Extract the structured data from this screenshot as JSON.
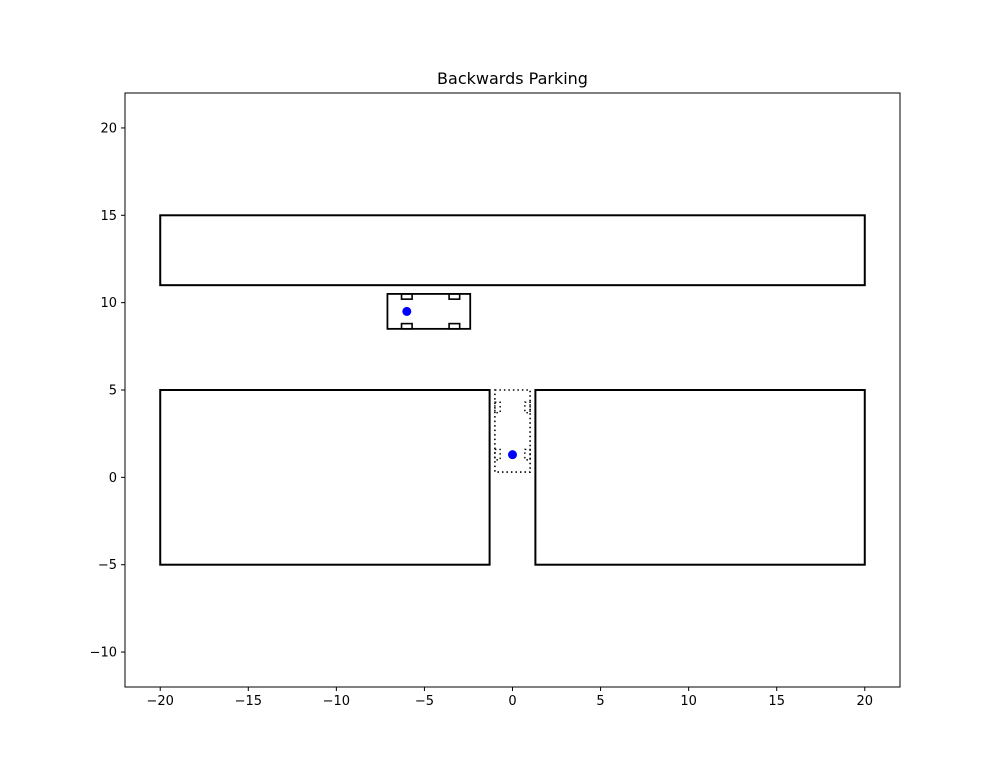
{
  "chart_data": {
    "type": "scatter",
    "title": "Backwards Parking",
    "xlabel": "",
    "ylabel": "",
    "xlim": [
      -22,
      22
    ],
    "ylim": [
      -12,
      22
    ],
    "xticks": [
      -20,
      -15,
      -10,
      -5,
      0,
      5,
      10,
      15,
      20
    ],
    "yticks": [
      -10,
      -5,
      0,
      5,
      10,
      15,
      20
    ],
    "xtick_labels": [
      "−20",
      "−15",
      "−10",
      "−5",
      "0",
      "5",
      "10",
      "15",
      "20"
    ],
    "ytick_labels": [
      "−10",
      "−5",
      "0",
      "5",
      "10",
      "15",
      "20"
    ],
    "grid": false,
    "legend": "none",
    "obstacles": [
      {
        "x0": -20,
        "y0": 11,
        "x1": 20,
        "y1": 15
      },
      {
        "x0": -20,
        "y0": -5,
        "x1": -1.3,
        "y1": 5
      },
      {
        "x0": 1.3,
        "y0": -5,
        "x1": 20,
        "y1": 5
      }
    ],
    "vehicle": {
      "body": {
        "x0": -7.1,
        "y0": 8.5,
        "x1": -2.4,
        "y1": 10.5
      },
      "wheels": [
        {
          "x0": -6.3,
          "y0": 10.2,
          "x1": -5.7,
          "y1": 10.5
        },
        {
          "x0": -3.6,
          "y0": 10.2,
          "x1": -3.0,
          "y1": 10.5
        },
        {
          "x0": -6.3,
          "y0": 8.5,
          "x1": -5.7,
          "y1": 8.8
        },
        {
          "x0": -3.6,
          "y0": 8.5,
          "x1": -3.0,
          "y1": 8.8
        }
      ],
      "reference_point": {
        "x": -6.0,
        "y": 9.5
      }
    },
    "target_vehicle": {
      "body": {
        "x0": -1.0,
        "y0": 0.3,
        "x1": 1.0,
        "y1": 5.0
      },
      "wheels": [
        {
          "x0": -1.0,
          "y0": 3.7,
          "x1": -0.7,
          "y1": 4.3
        },
        {
          "x0": 0.7,
          "y0": 3.7,
          "x1": 1.0,
          "y1": 4.3
        },
        {
          "x0": -1.0,
          "y0": 1.0,
          "x1": -0.7,
          "y1": 1.6
        },
        {
          "x0": 0.7,
          "y0": 1.0,
          "x1": 1.0,
          "y1": 1.6
        }
      ],
      "reference_point": {
        "x": 0.0,
        "y": 1.3
      }
    },
    "colors": {
      "outline": "#000000",
      "point": "#0000ff",
      "background": "#ffffff"
    }
  }
}
